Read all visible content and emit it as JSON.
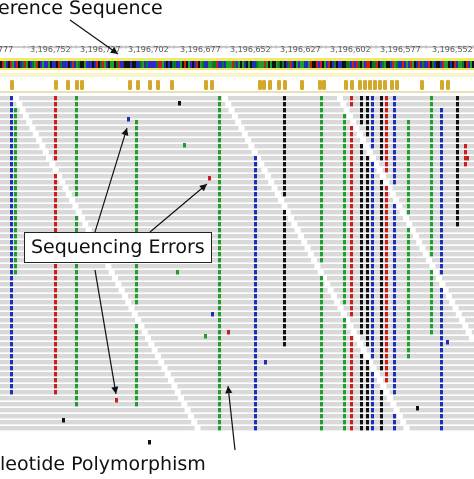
{
  "annotations": {
    "reference_label": "erence Sequence",
    "errors_label": "Sequencing Errors",
    "polymorphism_label": "leotide Polymorphism"
  },
  "ruler": {
    "ticks": [
      "777",
      "3,196,752",
      "3,196,727",
      "3,196,702",
      "3,196,677",
      "3,196,652",
      "3,196,627",
      "3,196,602",
      "3,196,577",
      "3,196,552"
    ]
  },
  "colors": {
    "read": "#d9d9d9",
    "ruler_band": "#f2e86a",
    "consensus": "#d4a82a",
    "base_a": "#1f9e2e",
    "base_c": "#1c2fb8",
    "base_g": "#111111",
    "base_t": "#c81e1e"
  }
}
